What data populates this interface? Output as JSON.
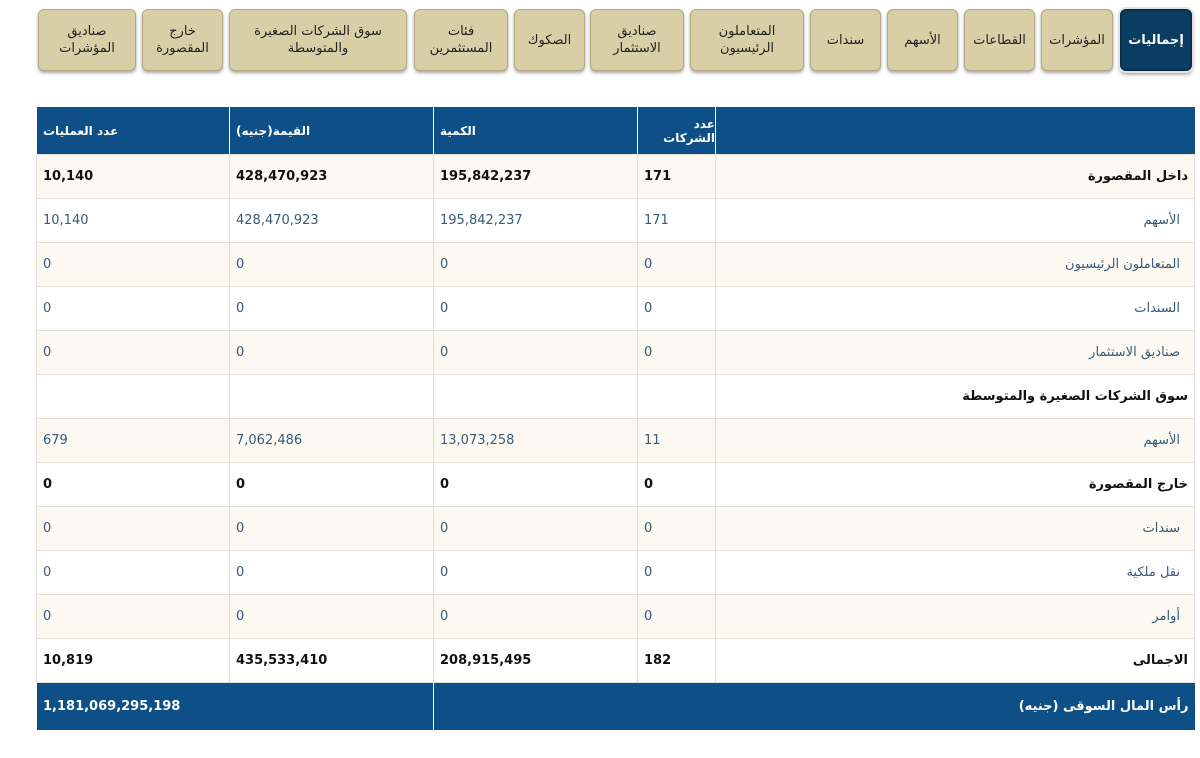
{
  "tabs": [
    {
      "label": "إجماليات",
      "active": true
    },
    {
      "label": "المؤشرات"
    },
    {
      "label": "القطاعات"
    },
    {
      "label": "الأسهم"
    },
    {
      "label": "سندات"
    },
    {
      "label": "المتعاملون\nالرئيسيون"
    },
    {
      "label": "صناديق\nالاستثمار"
    },
    {
      "label": "الصكوك"
    },
    {
      "label": "فئات\nالمستثمرين"
    },
    {
      "label": "سوق الشركات الصغيرة\nوالمتوسطة"
    },
    {
      "label": "خارج\nالمقصورة"
    },
    {
      "label": "صناديق\nالمؤشرات"
    }
  ],
  "table": {
    "headers": {
      "count": "عدد الشركات",
      "quantity": "الكمية",
      "value": "القيمة(جنيه)",
      "operations": "عدد العمليات"
    },
    "rows": [
      {
        "name": "داخل المقصورة",
        "count": "171",
        "quantity": "195,842,237",
        "value": "428,470,923",
        "operations": "10,140"
      },
      {
        "name": "الأسهم",
        "count": "171",
        "quantity": "195,842,237",
        "value": "428,470,923",
        "operations": "10,140"
      },
      {
        "name": "المتعاملون الرئيسيون",
        "count": "0",
        "quantity": "0",
        "value": "0",
        "operations": "0"
      },
      {
        "name": "السندات",
        "count": "0",
        "quantity": "0",
        "value": "0",
        "operations": "0"
      },
      {
        "name": "صناديق الاستثمار",
        "count": "0",
        "quantity": "0",
        "value": "0",
        "operations": "0"
      },
      {
        "name": "سوق الشركات الصغيرة والمتوسطة",
        "count": "",
        "quantity": "",
        "value": "",
        "operations": ""
      },
      {
        "name": "الأسهم",
        "count": "11",
        "quantity": "13,073,258",
        "value": "7,062,486",
        "operations": "679"
      },
      {
        "name": "خارج المقصورة",
        "count": "0",
        "quantity": "0",
        "value": "0",
        "operations": "0"
      },
      {
        "name": "سندات",
        "count": "0",
        "quantity": "0",
        "value": "0",
        "operations": "0"
      },
      {
        "name": "نقل ملكية",
        "count": "0",
        "quantity": "0",
        "value": "0",
        "operations": "0"
      },
      {
        "name": "أوامر",
        "count": "0",
        "quantity": "0",
        "value": "0",
        "operations": "0"
      },
      {
        "name": "الاجمالى",
        "count": "182",
        "quantity": "208,915,495",
        "value": "435,533,410",
        "operations": "10,819"
      }
    ],
    "footer": {
      "label": "رأس المال السوقى (جنيه)",
      "value": "1,181,069,295,198"
    }
  },
  "colors": {
    "header_bg": "#0d4f86",
    "tab_bg": "#d8cfa6",
    "active_tab_bg": "#0b3d63",
    "row_alt_bg": "#fbf9f1"
  }
}
